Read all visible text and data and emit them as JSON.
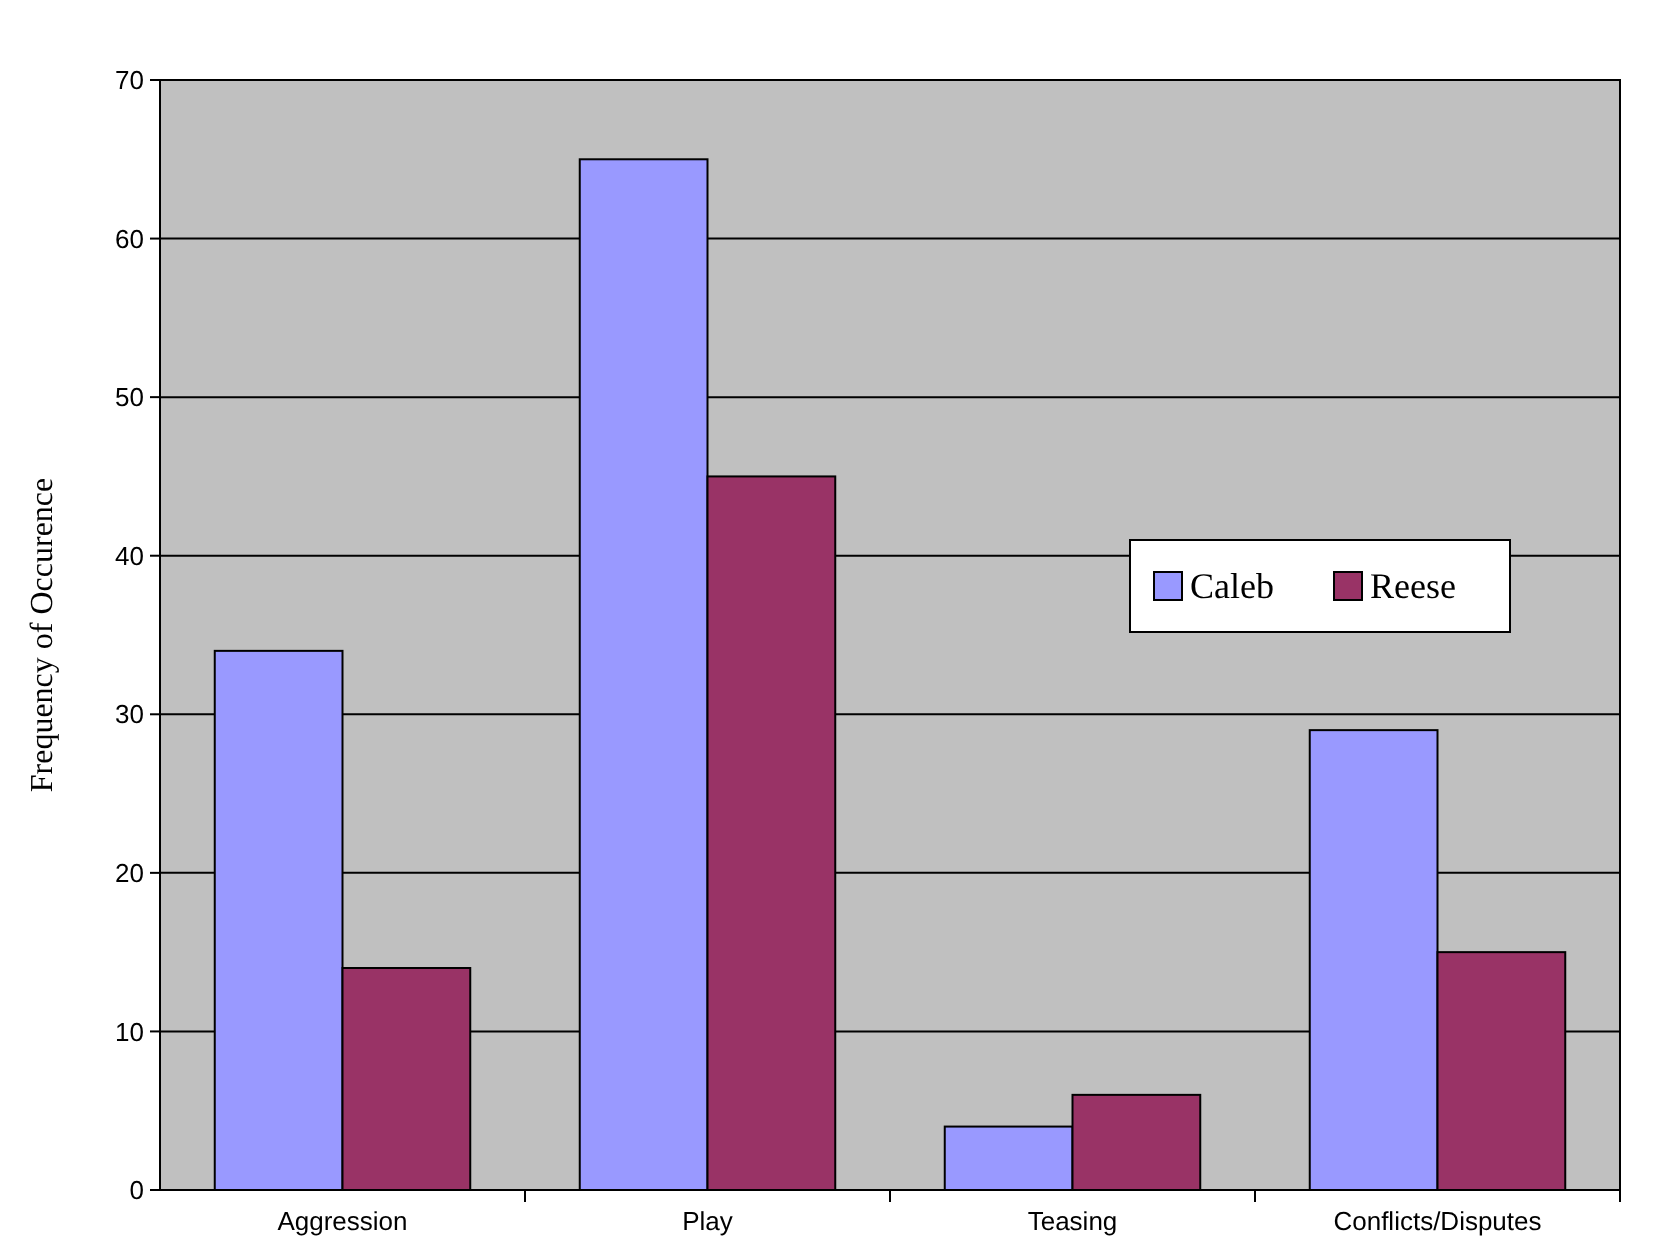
{
  "chart_data": {
    "type": "bar",
    "ylabel": "Frequency of Occurence",
    "categories": [
      "Aggression",
      "Play",
      "Teasing",
      "Conflicts/Disputes"
    ],
    "series": [
      {
        "name": "Caleb",
        "color": "#9999ff",
        "values": [
          34,
          65,
          4,
          29
        ]
      },
      {
        "name": "Reese",
        "color": "#993366",
        "values": [
          14,
          45,
          6,
          15
        ]
      }
    ],
    "ylim": [
      0,
      70
    ],
    "yticks": [
      0,
      10,
      20,
      30,
      40,
      50,
      60,
      70
    ],
    "grid": "y",
    "legend": "right"
  }
}
